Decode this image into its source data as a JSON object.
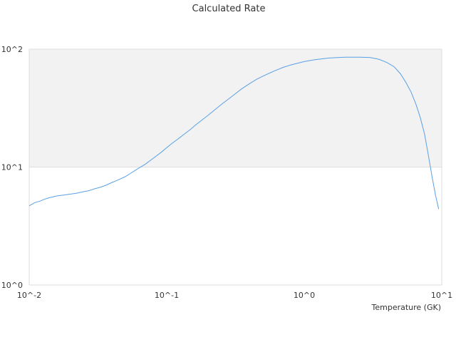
{
  "chart_data": {
    "type": "line",
    "title": "Calculated Rate",
    "xlabel": "Temperature (GK)",
    "ylabel": "",
    "x_scale": "log",
    "y_scale": "log",
    "xlim": [
      0.01,
      10
    ],
    "ylim": [
      1,
      100
    ],
    "x_ticks": [
      "10^-2",
      "10^-1",
      "10^0",
      "10^1"
    ],
    "y_ticks": [
      "10^0",
      "10^1",
      "10^2"
    ],
    "grid": "horizontal",
    "band_color": "#f2f2f2",
    "line_color": "#5aa0e6",
    "series": [
      {
        "x": [
          0.01,
          0.011,
          0.012,
          0.013,
          0.014,
          0.015,
          0.016,
          0.018,
          0.02,
          0.022,
          0.025,
          0.027,
          0.03,
          0.033,
          0.036,
          0.04,
          0.045,
          0.05,
          0.055,
          0.06,
          0.07,
          0.08,
          0.09,
          0.1,
          0.11,
          0.12,
          0.13,
          0.15,
          0.16,
          0.18,
          0.2,
          0.25,
          0.3,
          0.35,
          0.4,
          0.45,
          0.5,
          0.6,
          0.7,
          0.8,
          1.0,
          1.2,
          1.5,
          1.8,
          2.0,
          2.5,
          3.0,
          3.5,
          4.0,
          4.5,
          5.0,
          5.5,
          6.0,
          6.5,
          7.0,
          7.5,
          8.0,
          8.5,
          9.0,
          9.5
        ],
        "y": [
          4.7,
          5.0,
          5.15,
          5.35,
          5.5,
          5.6,
          5.7,
          5.8,
          5.9,
          6.0,
          6.2,
          6.3,
          6.55,
          6.75,
          7.0,
          7.4,
          7.85,
          8.3,
          8.9,
          9.5,
          10.6,
          11.9,
          13.2,
          14.6,
          16.0,
          17.2,
          18.5,
          21.0,
          22.5,
          25.0,
          27.5,
          34.0,
          40.0,
          46.0,
          51.0,
          55.5,
          59.0,
          65.0,
          70.0,
          73.5,
          78.5,
          81.5,
          84.0,
          85.0,
          85.5,
          85.5,
          85.0,
          82.0,
          77.0,
          71.0,
          62.0,
          52.0,
          43.0,
          34.0,
          26.0,
          19.0,
          12.5,
          8.3,
          5.8,
          4.4
        ]
      }
    ]
  }
}
